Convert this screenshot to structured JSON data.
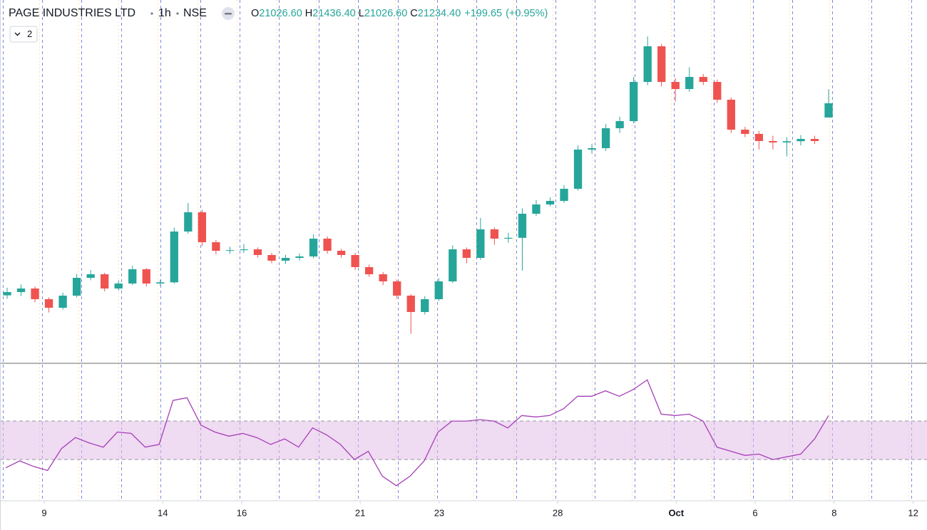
{
  "header": {
    "symbol": "PAGE INDUSTRIES LTD",
    "interval": "1h",
    "exchange": "NSE",
    "ohlc": [
      {
        "key": "O",
        "value": "21026.60"
      },
      {
        "key": "H",
        "value": "21436.40"
      },
      {
        "key": "L",
        "value": "21026.60"
      },
      {
        "key": "C",
        "value": "21234.40"
      }
    ],
    "change": "+199.65",
    "change_pct": "(+0.95%)",
    "indicators_badge": "2"
  },
  "chart_data": [
    {
      "type": "candlestick",
      "up_color": "#26a69a",
      "down_color": "#ef5350",
      "ylim": [
        17438,
        22742
      ],
      "xlim": [
        -1.12,
        22.35
      ],
      "xticks": [
        {
          "value": 0,
          "label": "9"
        },
        {
          "value": 3,
          "label": "14"
        },
        {
          "value": 5,
          "label": "16"
        },
        {
          "value": 8,
          "label": "21"
        },
        {
          "value": 10,
          "label": "23"
        },
        {
          "value": 13,
          "label": "28"
        },
        {
          "value": 16,
          "label": "Oct"
        },
        {
          "value": 18,
          "label": "6"
        },
        {
          "value": 20,
          "label": "8"
        },
        {
          "value": 22,
          "label": "12"
        }
      ],
      "ohlc": [
        [
          18430,
          18540,
          18380,
          18478
        ],
        [
          18478,
          18590,
          18420,
          18530
        ],
        [
          18530,
          18560,
          18330,
          18374
        ],
        [
          18374,
          18400,
          18180,
          18249
        ],
        [
          18249,
          18470,
          18220,
          18426
        ],
        [
          18426,
          18740,
          18400,
          18686
        ],
        [
          18686,
          18800,
          18650,
          18738
        ],
        [
          18738,
          18760,
          18490,
          18530
        ],
        [
          18530,
          18650,
          18500,
          18603
        ],
        [
          18603,
          18860,
          18580,
          18811
        ],
        [
          18811,
          18830,
          18560,
          18603
        ],
        [
          18603,
          18660,
          18570,
          18620
        ],
        [
          18620,
          19420,
          18600,
          19362
        ],
        [
          19362,
          19780,
          19330,
          19643
        ],
        [
          19643,
          19680,
          19150,
          19206
        ],
        [
          19206,
          19240,
          19030,
          19081
        ],
        [
          19081,
          19140,
          19040,
          19090
        ],
        [
          19090,
          19180,
          19050,
          19102
        ],
        [
          19102,
          19130,
          18980,
          19019
        ],
        [
          19019,
          19050,
          18900,
          18936
        ],
        [
          18936,
          19020,
          18890,
          18977
        ],
        [
          18977,
          19040,
          18940,
          18998
        ],
        [
          18998,
          19320,
          18970,
          19258
        ],
        [
          19258,
          19290,
          19040,
          19081
        ],
        [
          19081,
          19110,
          18980,
          19019
        ],
        [
          19019,
          19050,
          18800,
          18842
        ],
        [
          18842,
          18880,
          18700,
          18738
        ],
        [
          18738,
          18770,
          18580,
          18634
        ],
        [
          18634,
          18660,
          18380,
          18426
        ],
        [
          18426,
          18450,
          17870,
          18187
        ],
        [
          18187,
          18420,
          18150,
          18374
        ],
        [
          18374,
          18680,
          18350,
          18634
        ],
        [
          18634,
          19160,
          18610,
          19102
        ],
        [
          19102,
          19130,
          18900,
          18977
        ],
        [
          18977,
          19560,
          18950,
          19394
        ],
        [
          19394,
          19420,
          19170,
          19258
        ],
        [
          19258,
          19340,
          19200,
          19270
        ],
        [
          19270,
          19700,
          18790,
          19622
        ],
        [
          19622,
          19820,
          19590,
          19757
        ],
        [
          19757,
          19860,
          19730,
          19809
        ],
        [
          19809,
          20040,
          19780,
          19986
        ],
        [
          19986,
          20620,
          19960,
          20558
        ],
        [
          20558,
          20640,
          20500,
          20579
        ],
        [
          20579,
          20930,
          20540,
          20870
        ],
        [
          20870,
          21040,
          20800,
          20974
        ],
        [
          20974,
          21620,
          20940,
          21546
        ],
        [
          21546,
          22210,
          21500,
          22066
        ],
        [
          22066,
          22100,
          21480,
          21546
        ],
        [
          21546,
          21600,
          21260,
          21442
        ],
        [
          21442,
          21760,
          21400,
          21619
        ],
        [
          21619,
          21660,
          21500,
          21546
        ],
        [
          21546,
          21580,
          21240,
          21286
        ],
        [
          21286,
          21320,
          20800,
          20849
        ],
        [
          20849,
          20890,
          20740,
          20787
        ],
        [
          20787,
          20830,
          20560,
          20683
        ],
        [
          20683,
          20760,
          20560,
          20662
        ],
        [
          20662,
          20740,
          20460,
          20680
        ],
        [
          20680,
          20770,
          20620,
          20714
        ],
        [
          20714,
          20760,
          20640,
          20683
        ],
        [
          21026.6,
          21436.4,
          21026.6,
          21234.4
        ]
      ]
    },
    {
      "type": "line",
      "color": "#a53fb8",
      "band": [
        30,
        58
      ],
      "band_color": "#e1bee7",
      "ylim": [
        0,
        100
      ],
      "values": [
        24,
        29,
        25,
        22,
        38,
        46,
        42,
        39,
        50,
        49,
        39,
        41,
        73,
        75,
        55,
        50,
        47,
        49,
        46,
        41,
        45,
        39,
        53,
        48,
        41,
        30,
        36,
        18,
        11,
        18,
        29,
        50,
        58,
        58,
        59,
        58,
        53,
        62,
        61,
        62,
        67,
        76,
        76,
        80,
        76,
        81,
        88,
        63,
        62,
        63,
        58,
        39,
        36,
        33,
        34,
        30,
        32,
        34,
        45,
        62
      ]
    }
  ]
}
